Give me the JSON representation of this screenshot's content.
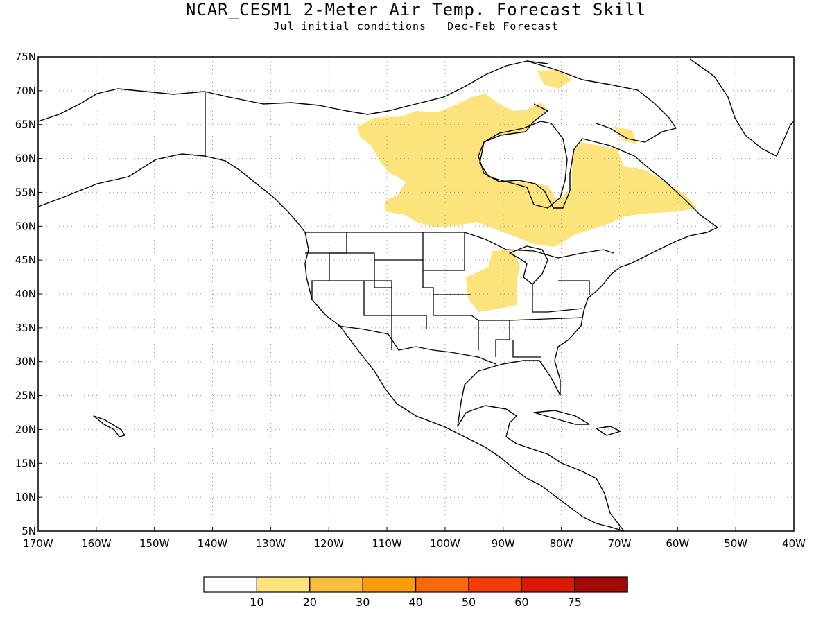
{
  "title": "NCAR_CESM1 2-Meter Air Temp. Forecast Skill",
  "subtitle": "Jul initial conditions   Dec-Feb Forecast",
  "map": {
    "lon_range": [
      -170,
      -40
    ],
    "lat_range": [
      5,
      75
    ],
    "lat_labels": [
      "75N",
      "70N",
      "65N",
      "60N",
      "55N",
      "50N",
      "45N",
      "40N",
      "35N",
      "30N",
      "25N",
      "20N",
      "15N",
      "10N",
      "5N"
    ],
    "lon_labels": [
      "170W",
      "160W",
      "150W",
      "140W",
      "130W",
      "120W",
      "110W",
      "100W",
      "90W",
      "80W",
      "70W",
      "60W",
      "50W",
      "40W"
    ],
    "grid": "dotted"
  },
  "colorbar": {
    "labels": [
      "10",
      "20",
      "30",
      "40",
      "50",
      "60",
      "75"
    ],
    "colors": [
      "#ffffff",
      "#fde37c",
      "#fbbd3e",
      "#f99b0c",
      "#f9690c",
      "#f43c06",
      "#da1905",
      "#a30906"
    ]
  },
  "colors": {
    "skill_10_20": "#fde37c",
    "coast": "#000000",
    "grid": "#999999"
  }
}
